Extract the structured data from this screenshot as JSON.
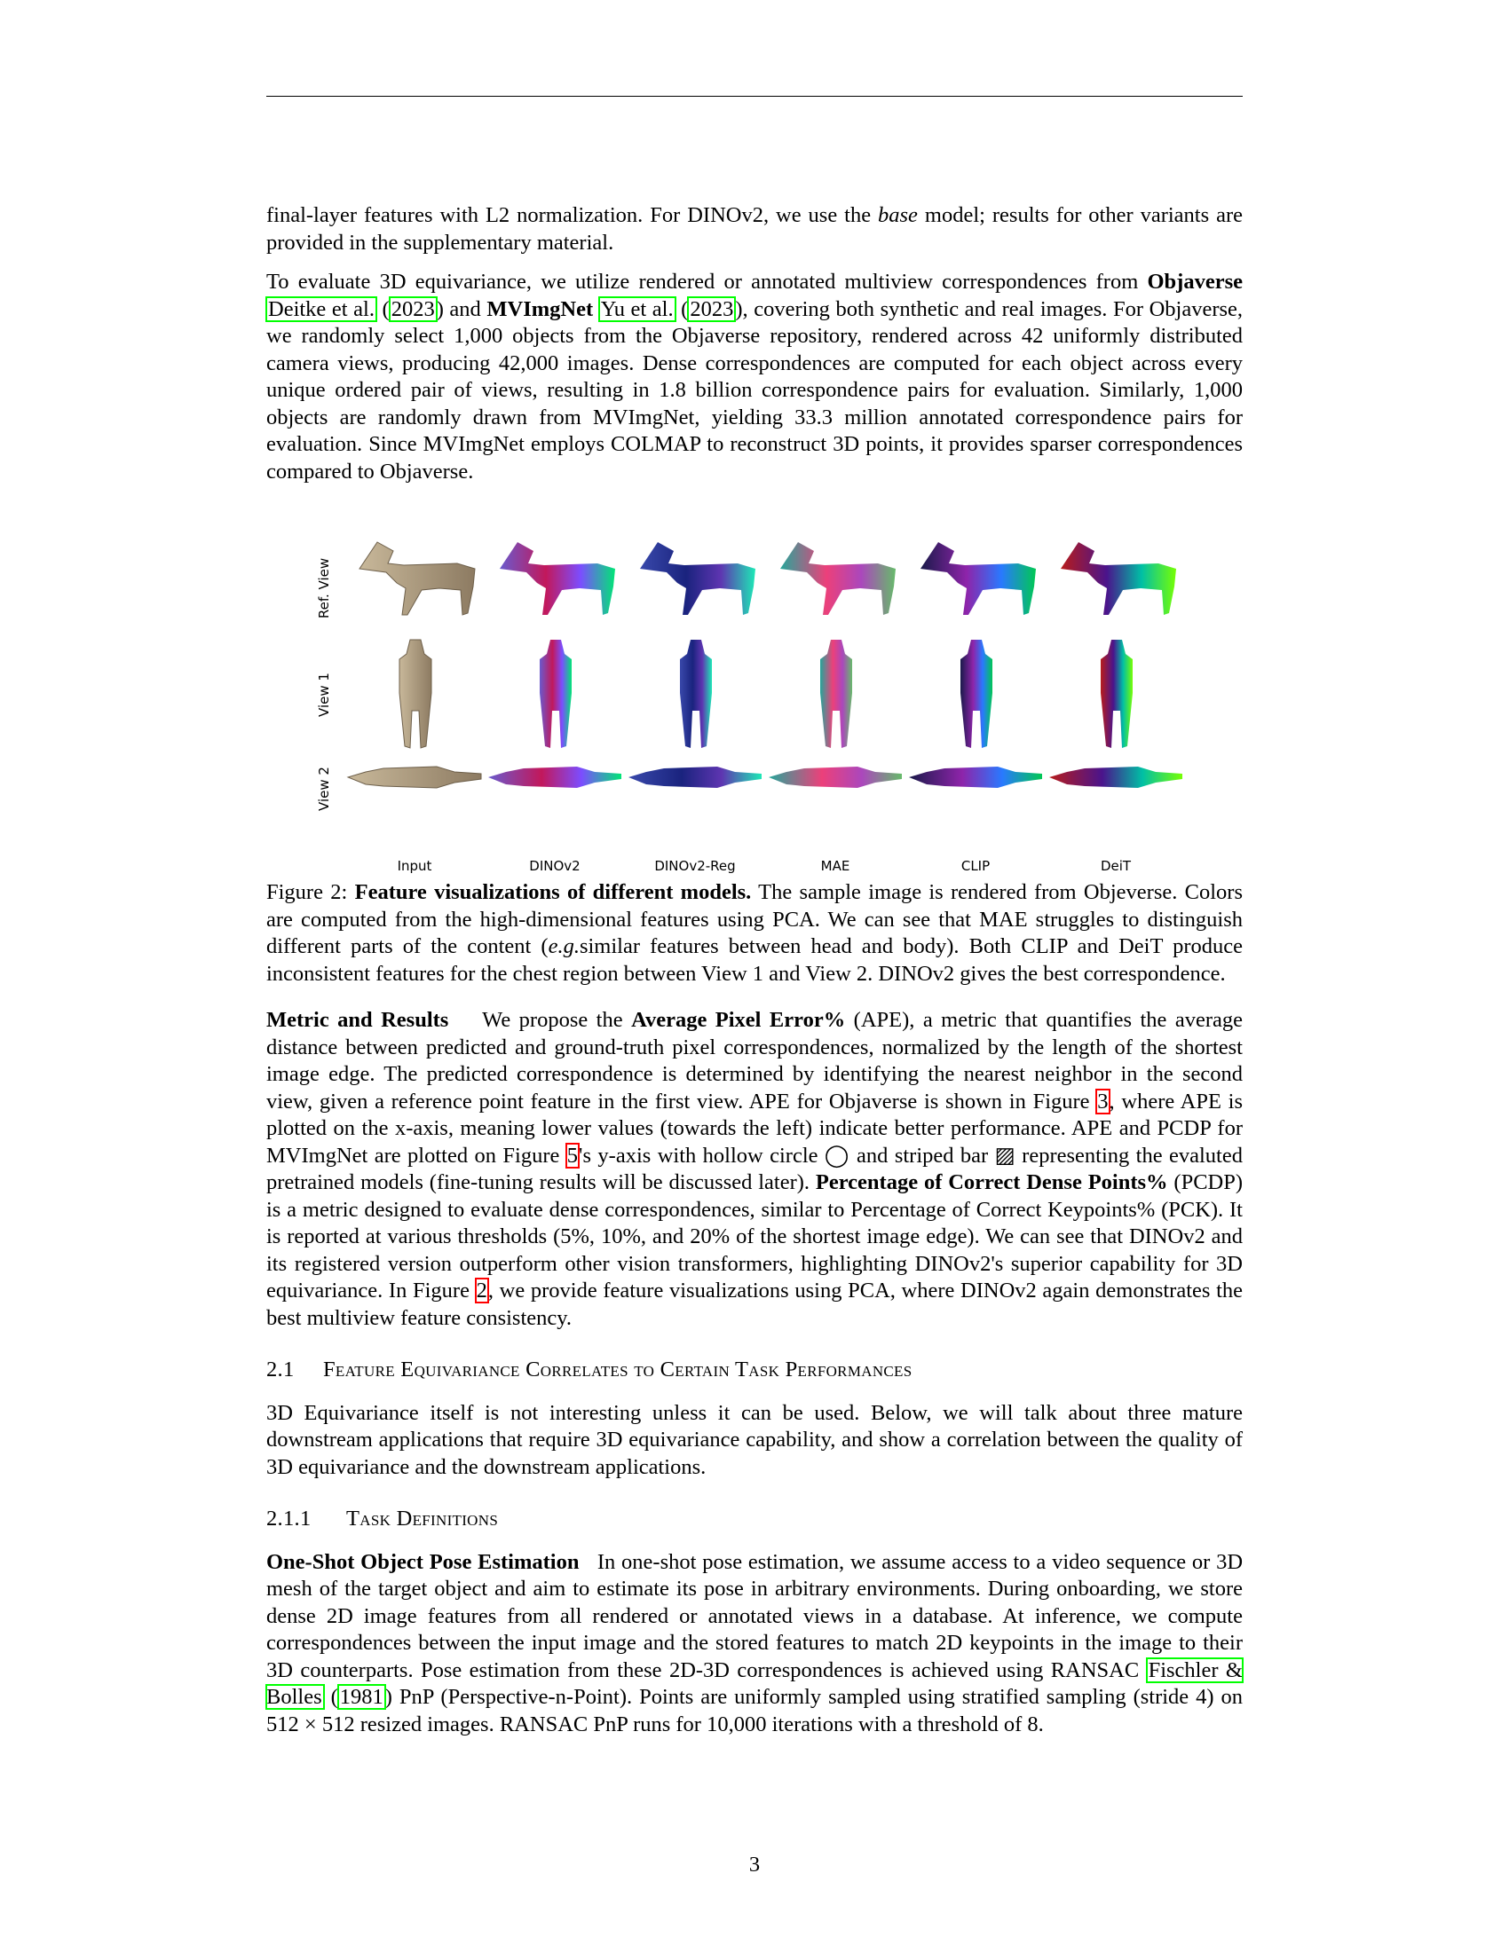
{
  "para1": {
    "a": "final-layer features with L2 normalization. For DINOv2, we use the ",
    "em": "base",
    "b": " model; results for other variants are provided in the supplementary material."
  },
  "para2": {
    "a": "To evaluate 3D equivariance, we utilize rendered or annotated multiview correspondences from ",
    "obj": "Objaverse",
    "cite1": "Deitke et al.",
    "cite1_year": "2023",
    "b": " and ",
    "mvi": "MVImgNet",
    "cite2": "Yu et al.",
    "cite2_year": "2023",
    "c": ", covering both synthetic and real images. For Objaverse, we randomly select 1,000 objects from the Objaverse repository, rendered across 42 uniformly distributed camera views, producing 42,000 images. Dense correspondences are computed for each object across every unique ordered pair of views, resulting in 1.8 billion correspondence pairs for evaluation. Similarly, 1,000 objects are randomly drawn from MVImgNet, yielding 33.3 million annotated correspondence pairs for evaluation. Since MVImgNet employs COLMAP to reconstruct 3D points, it provides sparser correspondences compared to Objaverse."
  },
  "figure": {
    "row_labels": [
      "Ref. View",
      "View 1",
      "View 2"
    ],
    "col_labels": [
      "Input",
      "DINOv2",
      "DINOv2-Reg",
      "MAE",
      "CLIP",
      "DeiT"
    ],
    "caption_prefix": "Figure 2: ",
    "caption_bold": "Feature visualizations of different models.",
    "caption_a": " The sample image is rendered from Objeverse. Colors are computed from the high-dimensional features using PCA. We can see that MAE struggles to distinguish different parts of the content (",
    "caption_em": "e.g.",
    "caption_b": "similar features between head and body). Both CLIP and DeiT produce inconsistent features for the chest region between View 1 and View 2. DINOv2 gives the best correspondence."
  },
  "metric": {
    "head": "Metric and Results",
    "a": "We propose the ",
    "ape_bold": "Average Pixel Error%",
    "b": " (APE), a metric that quantifies the average distance between predicted and ground-truth pixel correspondences, normalized by the length of the shortest image edge. The predicted correspondence is determined by identifying the nearest neighbor in the second view, given a reference point feature in the first view. APE for Objaverse is shown in Figure ",
    "ref3": "3",
    "c": ", where APE is plotted on the x-axis, meaning lower values (towards the left) indicate better performance. APE and PCDP for MVImgNet are plotted on Figure ",
    "ref5": "5",
    "d": "'s y-axis with hollow circle ◯ and striped bar ▨ representing the evaluted pretrained models (fine-tuning results will be discussed later). ",
    "pcdp_bold": "Percentage of Correct Dense Points%",
    "e": " (PCDP) is a metric designed to evaluate dense correspondences, similar to Percentage of Correct Keypoints% (PCK). It is reported at various thresholds (5%, 10%, and 20% of the shortest image edge). We can see that DINOv2 and its registered version outperform other vision transformers, highlighting DINOv2's superior capability for 3D equivariance. In Figure ",
    "ref2": "2",
    "f": ", we provide feature visualizations using PCA, where DINOv2 again demonstrates the best multiview feature consistency."
  },
  "section": {
    "num": "2.1",
    "title": "Feature Equivariance Correlates to Certain Task Performances",
    "para": "3D Equivariance itself is not interesting unless it can be used. Below, we will talk about three mature downstream applications that require 3D equivariance capability, and show a correlation between the quality of 3D equivariance and the downstream applications."
  },
  "subsection": {
    "num": "2.1.1",
    "title": "Task Definitions"
  },
  "pose": {
    "head": "One-Shot Object Pose Estimation",
    "a": "In one-shot pose estimation, we assume access to a video sequence or 3D mesh of the target object and aim to estimate its pose in arbitrary environments. During onboarding, we store dense 2D image features from all rendered or annotated views in a database. At inference, we compute correspondences between the input image and the stored features to match 2D keypoints in the image to their 3D counterparts. Pose estimation from these 2D-3D correspondences is achieved using RANSAC ",
    "cite": "Fischler & Bolles",
    "cite_year": "1981",
    "b": " PnP (Perspective-n-Point). Points are uniformly sampled using stratified sampling (stride 4) on 512 × 512 resized images. RANSAC PnP runs for 10,000 iterations with a threshold of 8."
  },
  "page_number": "3"
}
